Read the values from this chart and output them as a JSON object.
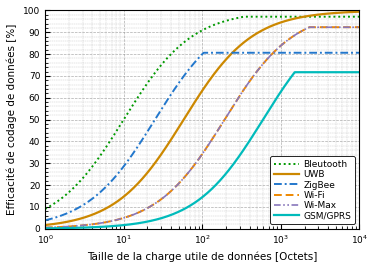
{
  "xlabel": "Taille de la charge utile de données [Octets]",
  "ylabel": "Efficacité de codage de données [%]",
  "ylim": [
    0,
    100
  ],
  "yticks": [
    0,
    10,
    20,
    30,
    40,
    50,
    60,
    70,
    80,
    90,
    100
  ],
  "xlim": [
    1,
    10000
  ],
  "fontsize": 7.5,
  "tick_fontsize": 6.5,
  "protocols": [
    {
      "label": "Bleutooth",
      "color": "#009900",
      "linestyle": "dotted",
      "linewidth": 1.4,
      "overhead": 10,
      "max_payload": 339
    },
    {
      "label": "UWB",
      "color": "#cc8800",
      "linestyle": "solid",
      "linewidth": 1.6,
      "overhead": 58,
      "max_payload": 1000000
    },
    {
      "label": "ZigBee",
      "color": "#2277cc",
      "linestyle": "dashdot",
      "linewidth": 1.4,
      "overhead": 25,
      "max_payload": 104
    },
    {
      "label": "Wi-Fi",
      "color": "#ee8800",
      "linestyle": "dashed",
      "linewidth": 1.4,
      "overhead": 192,
      "max_payload": 2312
    },
    {
      "label": "Wi-Max",
      "color": "#8877bb",
      "linestyle": "dashdot",
      "linewidth": 1.2,
      "overhead": 192,
      "max_payload": 2304
    },
    {
      "label": "GSM/GPRS",
      "color": "#00bbbb",
      "linestyle": "solid",
      "linewidth": 1.6,
      "overhead": 592,
      "max_payload": 1500
    }
  ],
  "background_color": "#ffffff",
  "grid_color": "#999999",
  "grid_linestyle": "--",
  "grid_linewidth": 0.5,
  "legend_loc": "lower right",
  "legend_fontsize": 6.5
}
